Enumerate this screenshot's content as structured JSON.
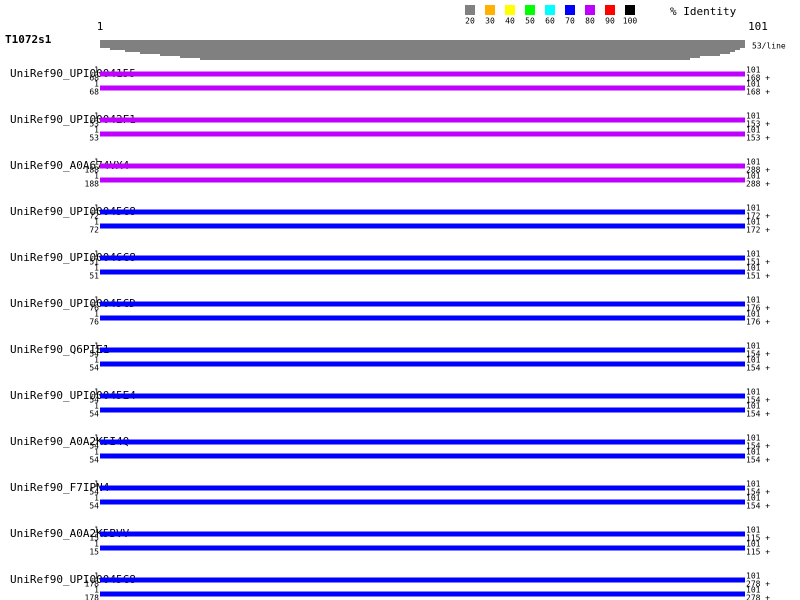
{
  "query": {
    "name": "T1072s1",
    "start": "1",
    "end": "101",
    "per_line": "53/line"
  },
  "legend": {
    "title": "% Identity",
    "items": [
      {
        "label": "20",
        "color": "#808080"
      },
      {
        "label": "30",
        "color": "#ffb000"
      },
      {
        "label": "40",
        "color": "#ffff00"
      },
      {
        "label": "50",
        "color": "#00ff00"
      },
      {
        "label": "60",
        "color": "#00ffff"
      },
      {
        "label": "70",
        "color": "#0000ff"
      },
      {
        "label": "80",
        "color": "#c000ff"
      },
      {
        "label": "90",
        "color": "#ff0000"
      },
      {
        "label": "100",
        "color": "#000000"
      }
    ]
  },
  "hits": [
    {
      "name": "UniRef90_UPI0004155",
      "color": "#c000ff",
      "start": "1",
      "end": "68",
      "qend": "101",
      "send": "168 +"
    },
    {
      "name": "UniRef90_UPI00042F1",
      "color": "#c000ff",
      "start": "1",
      "end": "53",
      "qend": "101",
      "send": "153 +"
    },
    {
      "name": "UniRef90_A0A674VX4",
      "color": "#c000ff",
      "start": "1",
      "end": "188",
      "qend": "101",
      "send": "288 +"
    },
    {
      "name": "UniRef90_UPI00045C8",
      "color": "#0000ff",
      "start": "1",
      "end": "72",
      "qend": "101",
      "send": "172 +"
    },
    {
      "name": "UniRef90_UPI00046C8",
      "color": "#0000ff",
      "start": "1",
      "end": "51",
      "qend": "101",
      "send": "151 +"
    },
    {
      "name": "UniRef90_UPI00045CD",
      "color": "#0000ff",
      "start": "1",
      "end": "76",
      "qend": "101",
      "send": "176 +"
    },
    {
      "name": "UniRef90_Q6PIE1",
      "color": "#0000ff",
      "start": "1",
      "end": "54",
      "qend": "101",
      "send": "154 +"
    },
    {
      "name": "UniRef90_UPI00045E4",
      "color": "#0000ff",
      "start": "1",
      "end": "54",
      "qend": "101",
      "send": "154 +"
    },
    {
      "name": "UniRef90_A0A2K5I4Q",
      "color": "#0000ff",
      "start": "1",
      "end": "54",
      "qend": "101",
      "send": "154 +"
    },
    {
      "name": "UniRef90_F7IPN4",
      "color": "#0000ff",
      "start": "1",
      "end": "54",
      "qend": "101",
      "send": "154 +"
    },
    {
      "name": "UniRef90_A0A2K5BVV",
      "color": "#0000ff",
      "start": "1",
      "end": "15",
      "qend": "101",
      "send": "115 +"
    },
    {
      "name": "UniRef90_UPI00045C8",
      "color": "#0000ff",
      "start": "1",
      "end": "178",
      "qend": "101",
      "send": "278 +"
    }
  ]
}
